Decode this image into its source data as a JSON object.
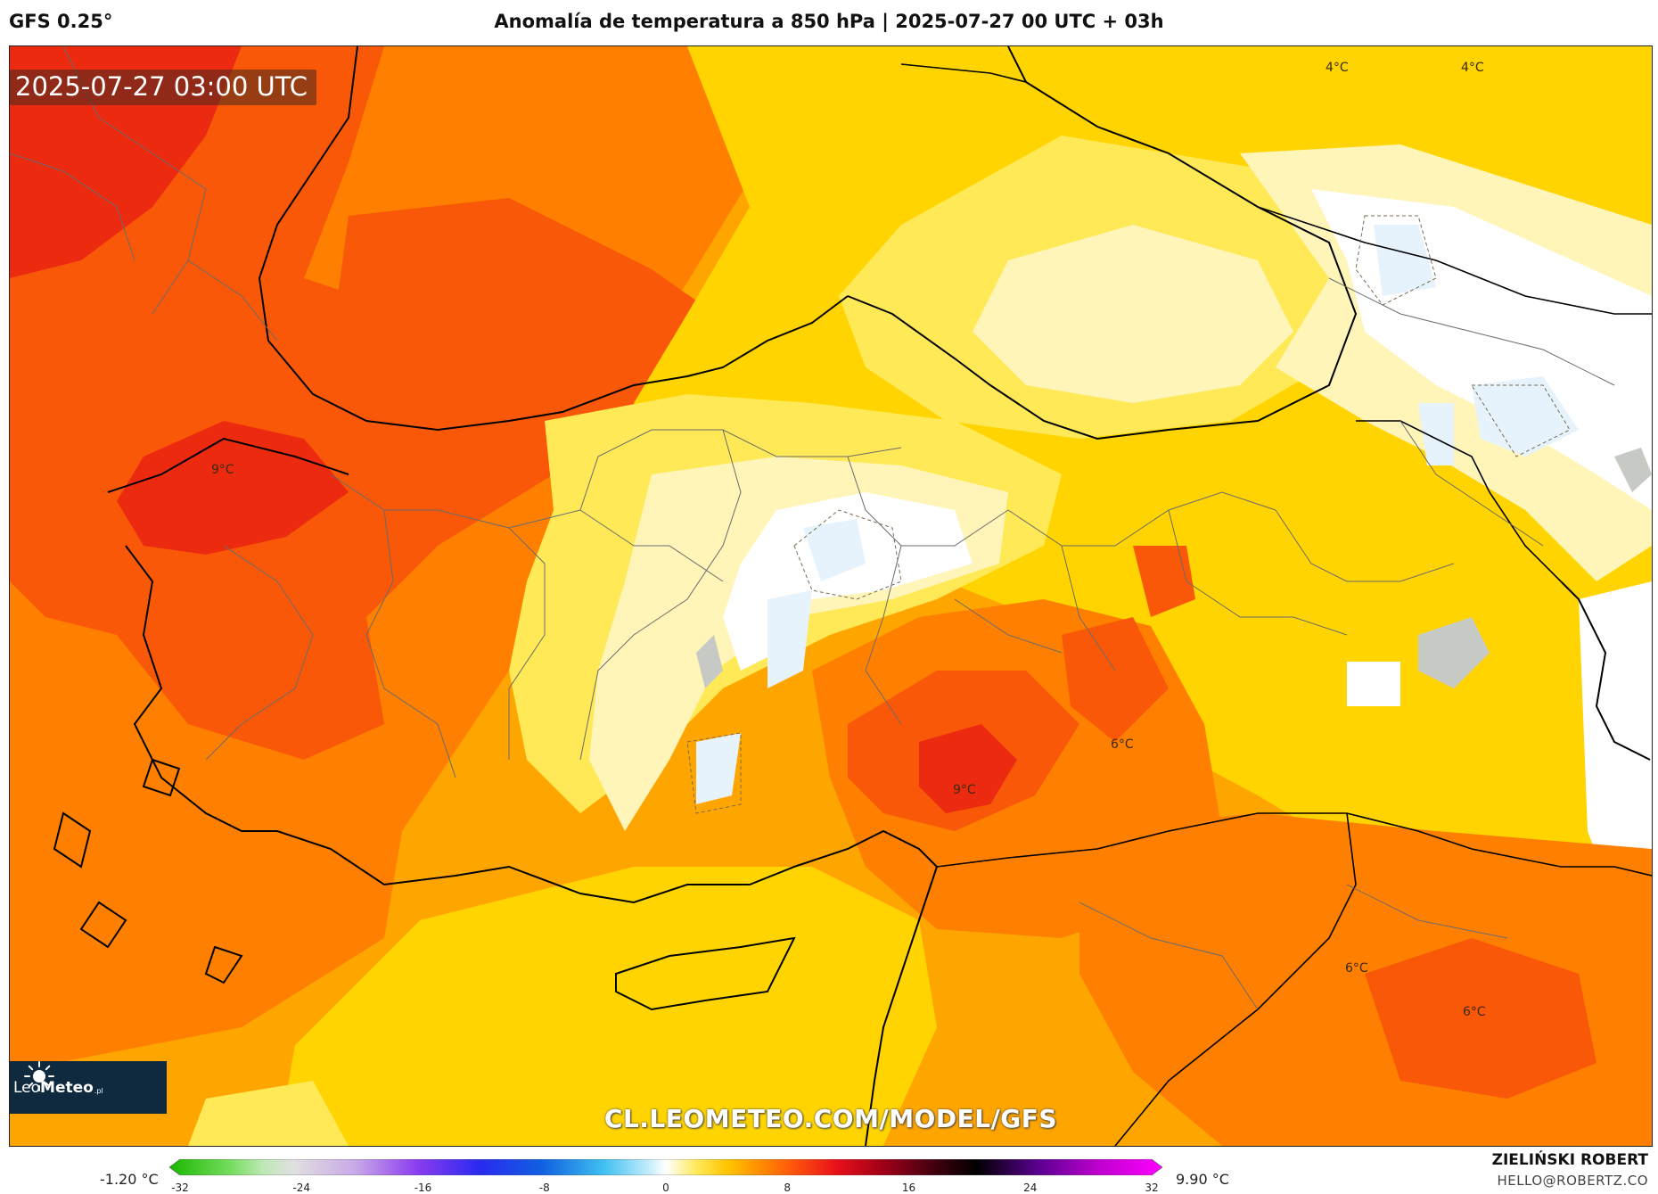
{
  "header": {
    "model": "GFS 0.25°",
    "title": "Anomalía de temperatura a 850 hPa | 2025-07-27 00 UTC + 03h"
  },
  "map": {
    "valid_time": "2025-07-27 03:00 UTC",
    "watermark": "CL.LEOMETEO.COM/MODEL/GFS",
    "logo": {
      "name_light": "Leo",
      "name_bold": "Meteo",
      "tld": ".pl"
    },
    "isotherm_labels": [
      "4°C",
      "4°C",
      "9°C",
      "6°C",
      "9°C",
      "6°C",
      "6°C"
    ],
    "colors": {
      "deep_red": "#ec2a10",
      "red_orange": "#f95808",
      "orange": "#ff7f00",
      "light_orange": "#ffa500",
      "amber": "#ffbf00",
      "yellow": "#ffd400",
      "light_yellow": "#ffe957",
      "pale_yellow": "#fff5b8",
      "white": "#ffffff",
      "pale_blue": "#e6f3fc",
      "sea_gray": "#c6c9c4",
      "border": "#000000",
      "admin_border": "#6b6b6b"
    }
  },
  "colorbar": {
    "min_label": "-1.20 °C",
    "max_label": "9.90 °C",
    "range": [
      -32,
      32
    ],
    "tick_labels": [
      "-32",
      "-24",
      "-16",
      "-8",
      "0",
      "8",
      "16",
      "24",
      "32"
    ],
    "stops": [
      {
        "v": -32,
        "c": "#19b800"
      },
      {
        "v": -28,
        "c": "#77dd60"
      },
      {
        "v": -26,
        "c": "#bde8b4"
      },
      {
        "v": -24,
        "c": "#e0e0e0"
      },
      {
        "v": -20,
        "c": "#c9a8e8"
      },
      {
        "v": -16,
        "c": "#8a3cf0"
      },
      {
        "v": -12,
        "c": "#2a2af0"
      },
      {
        "v": -8,
        "c": "#1060e0"
      },
      {
        "v": -4,
        "c": "#40c0f0"
      },
      {
        "v": -1,
        "c": "#c8eefc"
      },
      {
        "v": 0,
        "c": "#ffffff"
      },
      {
        "v": 2,
        "c": "#ffe957"
      },
      {
        "v": 4,
        "c": "#ffc400"
      },
      {
        "v": 6,
        "c": "#ff8f00"
      },
      {
        "v": 8,
        "c": "#ff5a0a"
      },
      {
        "v": 11,
        "c": "#e8101a"
      },
      {
        "v": 14,
        "c": "#a00018"
      },
      {
        "v": 17,
        "c": "#4a0010"
      },
      {
        "v": 20,
        "c": "#000000"
      },
      {
        "v": 24,
        "c": "#5a0090"
      },
      {
        "v": 28,
        "c": "#c000d0"
      },
      {
        "v": 32,
        "c": "#ff00ff"
      }
    ]
  },
  "footer": {
    "author": "ZIELIŃSKI ROBERT",
    "email": "HELLO@ROBERTZ.CO"
  }
}
